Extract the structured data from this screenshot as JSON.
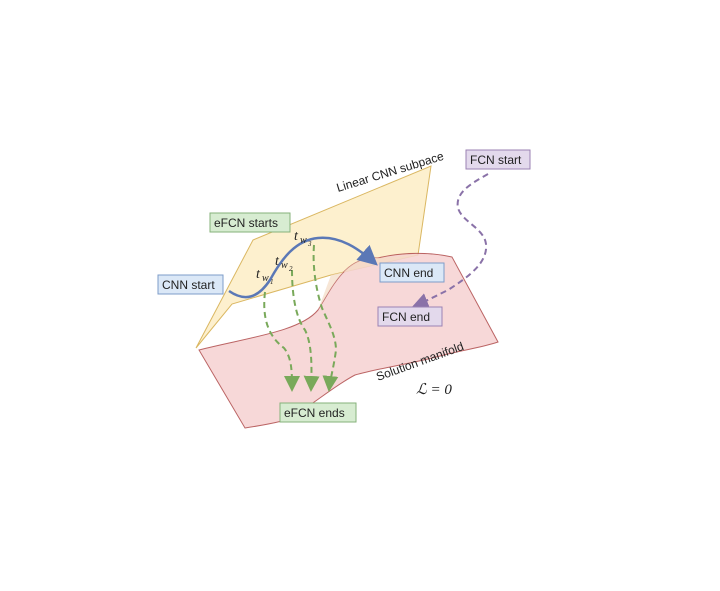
{
  "colors": {
    "plane_fill": "#fdf0cc",
    "plane_stroke": "#d9b45a",
    "manifold_fill": "#f6d2d2",
    "manifold_stroke": "#b04a4a",
    "cnn_path": "#5b78b6",
    "efcn_path": "#79a95a",
    "fcn_path": "#8a72a8",
    "blue_box_fill": "#dbe8f7",
    "blue_box_stroke": "#7e9cc8",
    "green_box_fill": "#d7ecd1",
    "green_box_stroke": "#86b27a",
    "purple_box_fill": "#e3d9ec",
    "purple_box_stroke": "#9b82b3"
  },
  "labels": {
    "cnn_start": "CNN start",
    "cnn_end": "CNN end",
    "fcn_start": "FCN start",
    "fcn_end": "FCN end",
    "efcn_starts": "eFCN starts",
    "efcn_ends": "eFCN ends",
    "subspace": "Linear CNN subpace",
    "manifold": "Solution manifold",
    "loss": "ℒ = 0"
  },
  "times": [
    {
      "base": "t",
      "sub": "w",
      "subsub": "1"
    },
    {
      "base": "t",
      "sub": "w",
      "subsub": "2"
    },
    {
      "base": "t",
      "sub": "w",
      "subsub": "3"
    }
  ]
}
